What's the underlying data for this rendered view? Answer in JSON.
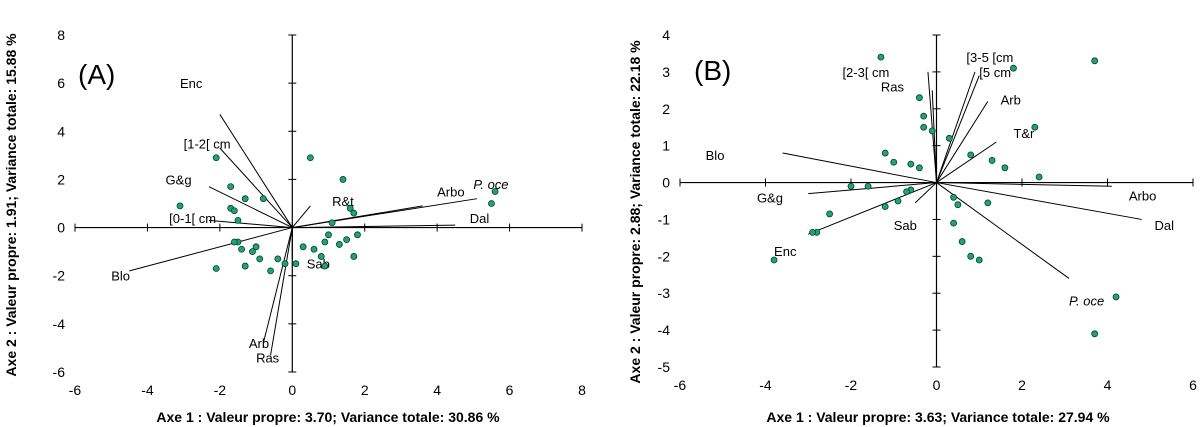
{
  "chart_data": [
    {
      "type": "scatter",
      "panel_label": "(A)",
      "xlabel": "Axe 1 : Valeur propre: 3.70; Variance totale: 30.86 %",
      "ylabel": "Axe 2 : Valeur propre: 1.91; Variance totale: 15.88 %",
      "xlim": [
        -6,
        8
      ],
      "ylim": [
        -6,
        8
      ],
      "xticks": [
        "-6",
        "-4",
        "-2",
        "0",
        "2",
        "4",
        "6",
        "8"
      ],
      "yticks": [
        "-6",
        "-4",
        "-2",
        "0",
        "2",
        "4",
        "6",
        "8"
      ],
      "point_color": "#1fa37a",
      "points": [
        [
          0.5,
          2.9
        ],
        [
          1.4,
          2.0
        ],
        [
          5.6,
          1.5
        ],
        [
          5.5,
          1.0
        ],
        [
          1.6,
          0.8
        ],
        [
          1.7,
          0.6
        ],
        [
          1.1,
          0.2
        ],
        [
          1.0,
          -0.3
        ],
        [
          1.5,
          -0.5
        ],
        [
          1.8,
          -0.3
        ],
        [
          0.9,
          -0.6
        ],
        [
          1.3,
          -0.7
        ],
        [
          0.3,
          -0.8
        ],
        [
          0.6,
          -0.9
        ],
        [
          0.8,
          -1.2
        ],
        [
          1.7,
          -1.2
        ],
        [
          0.9,
          -1.6
        ],
        [
          0.1,
          -1.5
        ],
        [
          -0.2,
          -1.5
        ],
        [
          -0.4,
          -1.3
        ],
        [
          -0.6,
          -1.8
        ],
        [
          -0.9,
          -1.3
        ],
        [
          -1.1,
          -1.0
        ],
        [
          -1.0,
          -0.8
        ],
        [
          -1.4,
          -0.9
        ],
        [
          -1.5,
          -0.6
        ],
        [
          -1.6,
          -0.6
        ],
        [
          -2.1,
          -1.7
        ],
        [
          -1.3,
          -1.6
        ],
        [
          -0.8,
          1.2
        ],
        [
          -1.3,
          1.2
        ],
        [
          -1.7,
          1.7
        ],
        [
          -1.7,
          0.8
        ],
        [
          -1.6,
          0.7
        ],
        [
          -1.5,
          0.3
        ],
        [
          -2.1,
          2.9
        ],
        [
          -3.1,
          0.9
        ]
      ],
      "vectors": [
        {
          "label": "Enc",
          "x": -2.0,
          "y": 4.7,
          "lx": -3.1,
          "ly": 6.0,
          "italic": false
        },
        {
          "label": "[1-2[ cm",
          "x": -2.0,
          "y": 3.3,
          "lx": -3.0,
          "ly": 3.5,
          "italic": false
        },
        {
          "label": "G&g",
          "x": -2.3,
          "y": 1.7,
          "lx": -3.5,
          "ly": 2.0,
          "italic": false
        },
        {
          "label": "[0-1[ cm",
          "x": -2.3,
          "y": 0.3,
          "lx": -3.4,
          "ly": 0.4,
          "italic": false
        },
        {
          "label": "Blo",
          "x": -4.5,
          "y": -1.8,
          "lx": -5.0,
          "ly": -2.0,
          "italic": false
        },
        {
          "label": "Arb",
          "x": -0.8,
          "y": -4.8,
          "lx": -1.2,
          "ly": -4.8,
          "italic": false
        },
        {
          "label": "Ras",
          "x": -0.6,
          "y": -5.3,
          "lx": -1.0,
          "ly": -5.4,
          "italic": false
        },
        {
          "label": "R&t",
          "x": 0.5,
          "y": 0.9,
          "lx": 1.1,
          "ly": 1.1,
          "italic": false
        },
        {
          "label": "Arbo",
          "x": 3.6,
          "y": 0.9,
          "lx": 4.0,
          "ly": 1.5,
          "italic": false
        },
        {
          "label": "P. oce",
          "x": 5.1,
          "y": 1.2,
          "lx": 5.0,
          "ly": 1.8,
          "italic": true
        },
        {
          "label": "Dal",
          "x": 4.5,
          "y": 0.1,
          "lx": 4.9,
          "ly": 0.4,
          "italic": false
        },
        {
          "label": "Sab",
          "x": 0.0,
          "y": -1.3,
          "lx": 0.4,
          "ly": -1.5,
          "italic": false
        }
      ]
    },
    {
      "type": "scatter",
      "panel_label": "(B)",
      "xlabel": "Axe 1 : Valeur propre: 3.63; Variance totale: 27.94 %",
      "ylabel": "Axe 2 : Valeur propre: 2.88; Variance totale: 22.18 %",
      "xlim": [
        -6,
        6
      ],
      "ylim": [
        -5,
        4
      ],
      "xticks": [
        "-6",
        "-4",
        "-2",
        "0",
        "2",
        "4",
        "6"
      ],
      "yticks": [
        "-5",
        "-4",
        "-3",
        "-2",
        "-1",
        "0",
        "1",
        "2",
        "3",
        "4"
      ],
      "point_color": "#1fa37a",
      "points": [
        [
          -1.3,
          3.4
        ],
        [
          1.8,
          3.1
        ],
        [
          3.7,
          3.3
        ],
        [
          -0.4,
          2.3
        ],
        [
          -0.3,
          1.8
        ],
        [
          -0.3,
          1.5
        ],
        [
          -0.1,
          1.4
        ],
        [
          0.3,
          1.2
        ],
        [
          2.3,
          1.5
        ],
        [
          -1.2,
          0.8
        ],
        [
          -1.0,
          0.55
        ],
        [
          -0.6,
          0.5
        ],
        [
          -0.4,
          0.4
        ],
        [
          0.8,
          0.75
        ],
        [
          1.3,
          0.6
        ],
        [
          1.6,
          0.4
        ],
        [
          2.4,
          0.15
        ],
        [
          -2.0,
          -0.1
        ],
        [
          -1.6,
          -0.1
        ],
        [
          -0.6,
          -0.2
        ],
        [
          -1.2,
          -0.65
        ],
        [
          -0.9,
          -0.5
        ],
        [
          -0.7,
          -0.25
        ],
        [
          0.4,
          -0.4
        ],
        [
          0.5,
          -0.6
        ],
        [
          1.2,
          -0.55
        ],
        [
          -2.5,
          -0.85
        ],
        [
          -2.8,
          -1.35
        ],
        [
          -2.9,
          -1.35
        ],
        [
          0.4,
          -1.1
        ],
        [
          0.6,
          -1.6
        ],
        [
          0.8,
          -2.0
        ],
        [
          1.0,
          -2.1
        ],
        [
          -3.8,
          -2.1
        ],
        [
          4.2,
          -3.1
        ],
        [
          3.7,
          -4.1
        ]
      ],
      "vectors": [
        {
          "label": "[3-5 [cm",
          "x": 0.9,
          "y": 3.0,
          "lx": 0.7,
          "ly": 3.4,
          "italic": false
        },
        {
          "label": "[2-3[ cm",
          "x": -0.2,
          "y": 3.0,
          "lx": -2.2,
          "ly": 3.0,
          "italic": false
        },
        {
          "label": "[5 cm",
          "x": 1.0,
          "y": 2.9,
          "lx": 1.0,
          "ly": 3.0,
          "italic": false
        },
        {
          "label": "Ras",
          "x": -0.1,
          "y": 2.5,
          "lx": -1.3,
          "ly": 2.6,
          "italic": false
        },
        {
          "label": "Arb",
          "x": 1.2,
          "y": 2.2,
          "lx": 1.5,
          "ly": 2.25,
          "italic": false
        },
        {
          "label": "T&r",
          "x": 1.4,
          "y": 1.1,
          "lx": 1.8,
          "ly": 1.35,
          "italic": false
        },
        {
          "label": "Blo",
          "x": -3.6,
          "y": 0.8,
          "lx": -5.4,
          "ly": 0.75,
          "italic": false
        },
        {
          "label": "G&g",
          "x": -3.0,
          "y": -0.3,
          "lx": -4.2,
          "ly": -0.4,
          "italic": false
        },
        {
          "label": "Enc",
          "x": -3.0,
          "y": -1.4,
          "lx": -3.8,
          "ly": -1.85,
          "italic": false
        },
        {
          "label": "Sab",
          "x": -0.5,
          "y": -0.55,
          "lx": -1.0,
          "ly": -1.15,
          "italic": false
        },
        {
          "label": "Arbo",
          "x": 4.1,
          "y": -0.1,
          "lx": 4.5,
          "ly": -0.35,
          "italic": false
        },
        {
          "label": "Dal",
          "x": 4.8,
          "y": -1.0,
          "lx": 5.1,
          "ly": -1.15,
          "italic": false
        },
        {
          "label": "P. oce",
          "x": 3.1,
          "y": -2.6,
          "lx": 3.1,
          "ly": -3.2,
          "italic": true
        }
      ]
    }
  ]
}
